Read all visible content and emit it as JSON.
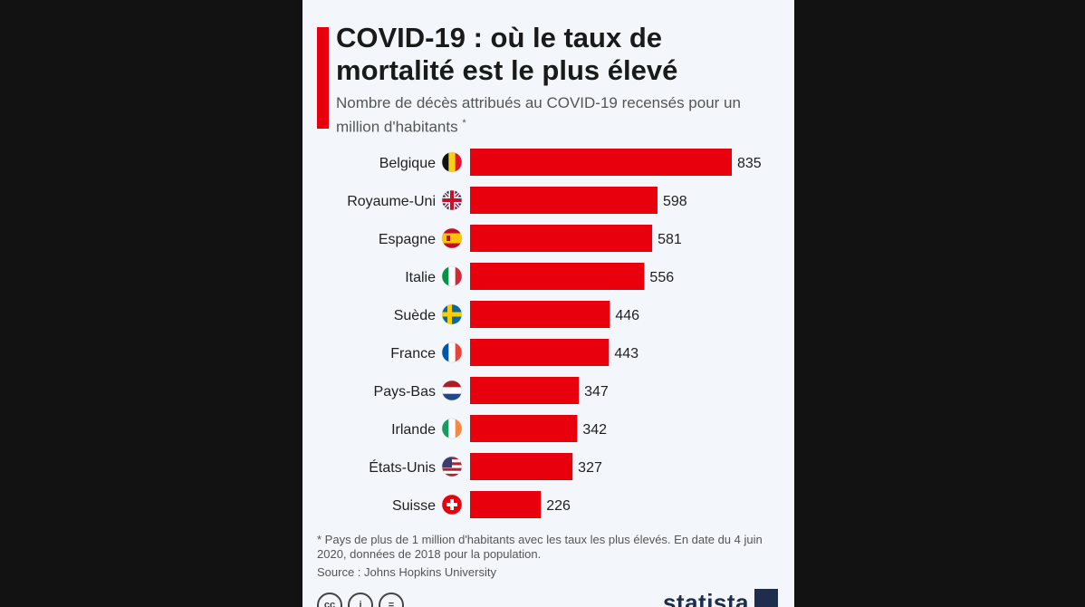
{
  "title": "COVID-19 : où le taux de mortalité est le plus élevé",
  "subtitle": "Nombre de décès attribués au COVID-19 recensés pour un million d'habitants",
  "subtitle_mark": "*",
  "footnote": "* Pays de plus de 1 million d'habitants avec les taux les plus élevés. En date du 4 juin 2020, données de 2018 pour la population.",
  "source": "Source : Johns Hopkins University",
  "brand": "statista",
  "license_icons": [
    "cc-icon",
    "by-icon",
    "nd-icon"
  ],
  "colors": {
    "bar": "#e8000d",
    "accent": "#e8000d",
    "background": "#f3f6fa"
  },
  "chart_data": {
    "type": "bar",
    "orientation": "horizontal",
    "categories": [
      "Belgique",
      "Royaume-Uni",
      "Espagne",
      "Italie",
      "Suède",
      "France",
      "Pays-Bas",
      "Irlande",
      "États-Unis",
      "Suisse"
    ],
    "values": [
      835,
      598,
      581,
      556,
      446,
      443,
      347,
      342,
      327,
      226
    ],
    "flags": [
      "belgium-flag-icon",
      "uk-flag-icon",
      "spain-flag-icon",
      "italy-flag-icon",
      "sweden-flag-icon",
      "france-flag-icon",
      "netherlands-flag-icon",
      "ireland-flag-icon",
      "usa-flag-icon",
      "switzerland-flag-icon"
    ],
    "xlim": [
      0,
      835
    ],
    "grid": false,
    "legend": "none"
  }
}
